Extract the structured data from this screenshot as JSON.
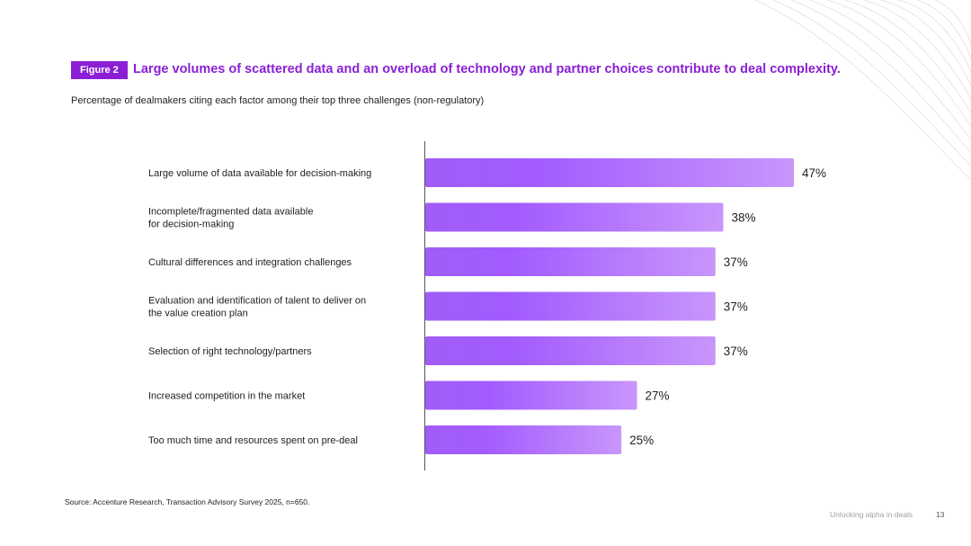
{
  "figure": {
    "badge": "Figure 2",
    "title": "Large volumes of scattered data and an overload of technology and partner choices contribute to deal complexity.",
    "subtitle": "Percentage of dealmakers citing each factor among their top three challenges (non-regulatory)"
  },
  "chart_data": {
    "type": "bar",
    "orientation": "horizontal",
    "categories": [
      [
        "Large volume of data available for decision-making"
      ],
      [
        "Incomplete/fragmented data available",
        "for decision-making"
      ],
      [
        "Cultural differences and integration challenges"
      ],
      [
        "Evaluation and identification of talent to deliver on",
        "the value creation plan"
      ],
      [
        "Selection of right technology/partners"
      ],
      [
        "Increased competition in the market"
      ],
      [
        "Too much time and resources spent on pre-deal"
      ]
    ],
    "values": [
      47,
      38,
      37,
      37,
      37,
      27,
      25
    ],
    "value_labels": [
      "47%",
      "38%",
      "37%",
      "37%",
      "37%",
      "27%",
      "25%"
    ],
    "xlim": [
      0,
      100
    ],
    "unit": "%",
    "colors": {
      "bar_start": "#a15cf7",
      "bar_mid": "#a35bff",
      "bar_end": "#c896fb",
      "axis": "#555555"
    }
  },
  "footer": {
    "source": "Source: Accenture Research, Transaction Advisory Survey 2025, n=650.",
    "label": "Unlocking alpha in deals",
    "page_number": "13"
  }
}
